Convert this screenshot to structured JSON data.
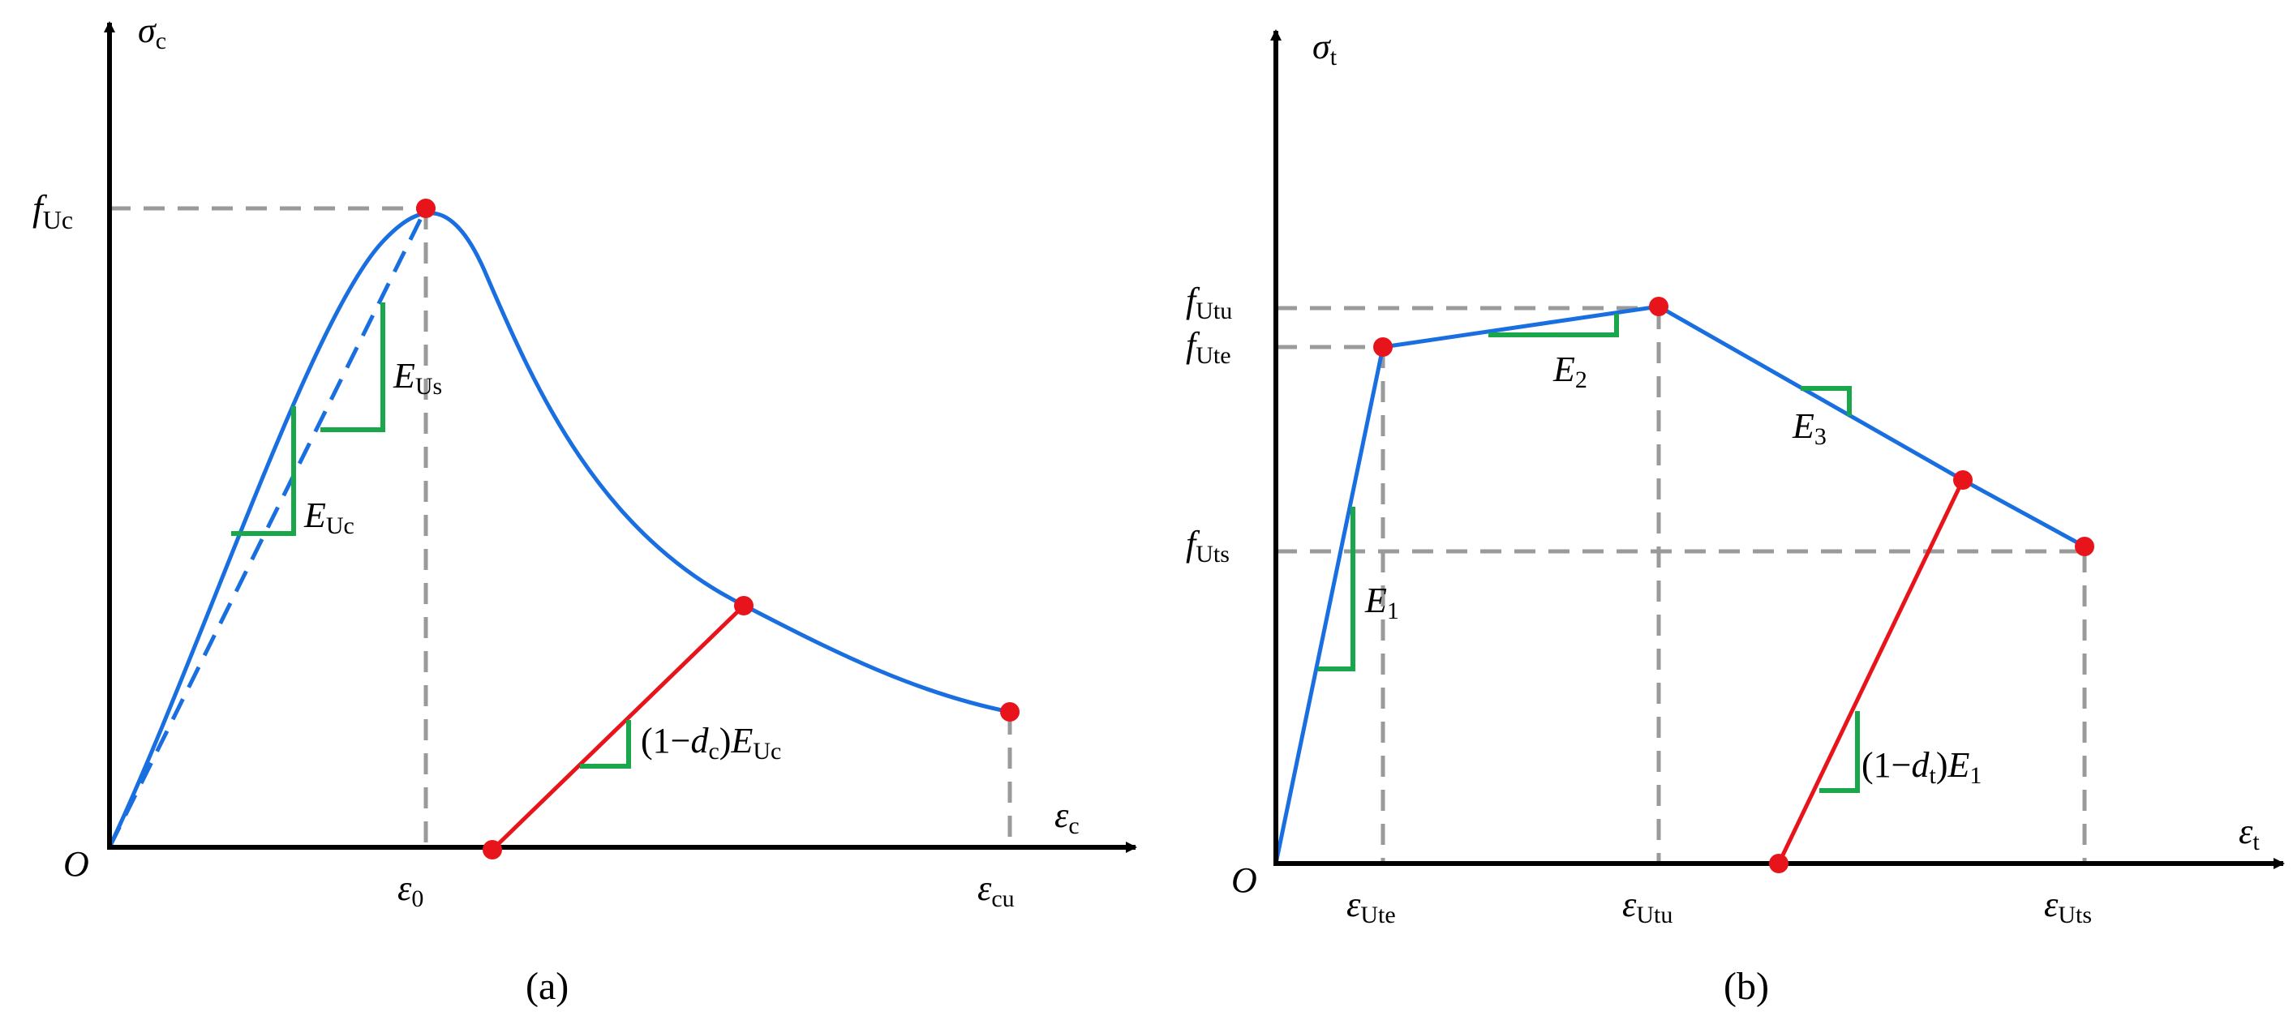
{
  "panel_a": {
    "caption": "(a)",
    "y_axis": {
      "symbol": "σ",
      "sub": "c"
    },
    "x_axis": {
      "symbol": "ε",
      "sub": "c"
    },
    "origin": "O",
    "f_Uc": {
      "symbol": "f",
      "sub": "Uc"
    },
    "eps0": {
      "symbol": "ε",
      "sub": "0"
    },
    "eps_cu": {
      "symbol": "ε",
      "sub": "cu"
    },
    "E_Us": {
      "symbol": "E",
      "sub": "Us"
    },
    "E_Uc": {
      "symbol": "E",
      "sub": "Uc"
    },
    "unload": {
      "pre": "(1−",
      "d": "d",
      "d_sub": "c",
      "mid": ")",
      "E": "E",
      "E_sub": "Uc"
    }
  },
  "panel_b": {
    "caption": "(b)",
    "y_axis": {
      "symbol": "σ",
      "sub": "t"
    },
    "x_axis": {
      "symbol": "ε",
      "sub": "t"
    },
    "origin": "O",
    "f_Utu": {
      "symbol": "f",
      "sub": "Utu"
    },
    "f_Ute": {
      "symbol": "f",
      "sub": "Ute"
    },
    "f_Uts": {
      "symbol": "f",
      "sub": "Uts"
    },
    "eps_Ute": {
      "symbol": "ε",
      "sub": "Ute"
    },
    "eps_Utu": {
      "symbol": "ε",
      "sub": "Utu"
    },
    "eps_Uts": {
      "symbol": "ε",
      "sub": "Uts"
    },
    "E1": {
      "symbol": "E",
      "sub": "1"
    },
    "E2": {
      "symbol": "E",
      "sub": "2"
    },
    "E3": {
      "symbol": "E",
      "sub": "3"
    },
    "unload": {
      "pre": "(1−",
      "d": "d",
      "d_sub": "t",
      "mid": ")",
      "E": "E",
      "E_sub": "1"
    }
  },
  "colors": {
    "curve": "#1a6fe0",
    "unload": "#e8141b",
    "slope": "#1aa64b",
    "guide": "#9a9a9a",
    "point": "#e8141b",
    "axis": "#000000"
  }
}
